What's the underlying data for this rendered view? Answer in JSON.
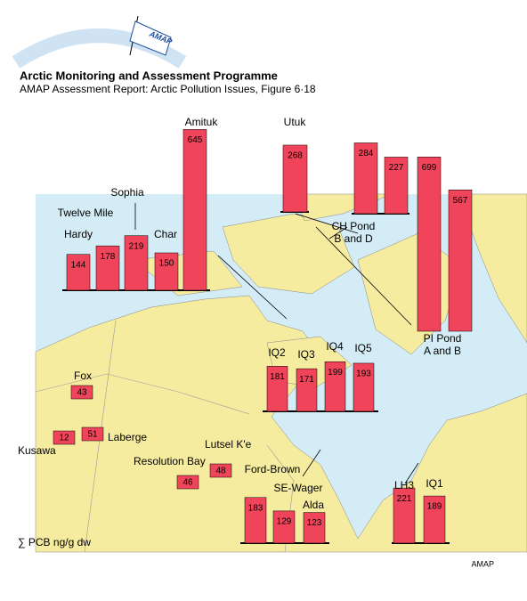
{
  "header": {
    "logo": "AMAP",
    "title": "Arctic Monitoring and Assessment Programme",
    "subtitle": "AMAP Assessment Report: Arctic Pollution Issues, Figure 6·18"
  },
  "groups": [
    {
      "sites": [
        {
          "name": "Hardy",
          "value": 144
        },
        {
          "name": "Twelve Mile",
          "value": 178
        },
        {
          "name": "Sophia",
          "value": 219
        },
        {
          "name": "Char",
          "value": 150
        },
        {
          "name": "Amituk",
          "value": 645
        }
      ]
    },
    {
      "sites": [
        {
          "name": "Utuk",
          "value": 268
        }
      ]
    },
    {
      "label": [
        "CH Pond",
        "B and D"
      ],
      "sites": [
        {
          "value": 284
        },
        {
          "value": 227
        }
      ]
    },
    {
      "label": [
        "PI Pond",
        "A and B"
      ],
      "sites": [
        {
          "value": 699
        },
        {
          "value": 567
        }
      ]
    },
    {
      "sites": [
        {
          "name": "IQ2",
          "value": 181
        },
        {
          "name": "IQ3",
          "value": 171
        },
        {
          "name": "IQ4",
          "value": 199
        },
        {
          "name": "IQ5",
          "value": 193
        }
      ]
    },
    {
      "sites": [
        {
          "name": "LH3",
          "value": 221
        },
        {
          "name": "IQ1",
          "value": 189
        }
      ]
    },
    {
      "sites": [
        {
          "name": "Ford-Brown",
          "value": 183
        },
        {
          "name": "SE-Wager",
          "value": 129
        },
        {
          "name": "Alda",
          "value": 123
        }
      ]
    },
    {
      "sites": [
        {
          "name": "Fox",
          "value": 43
        },
        {
          "name": "Kusawa",
          "value": 12
        },
        {
          "name": "Laberge",
          "value": 51
        },
        {
          "name": "Resolution Bay",
          "value": 46
        },
        {
          "name": "Lutsel K'e",
          "value": 48
        }
      ]
    }
  ],
  "units": "∑ PCB ng/g dw",
  "credit": "AMAP"
}
